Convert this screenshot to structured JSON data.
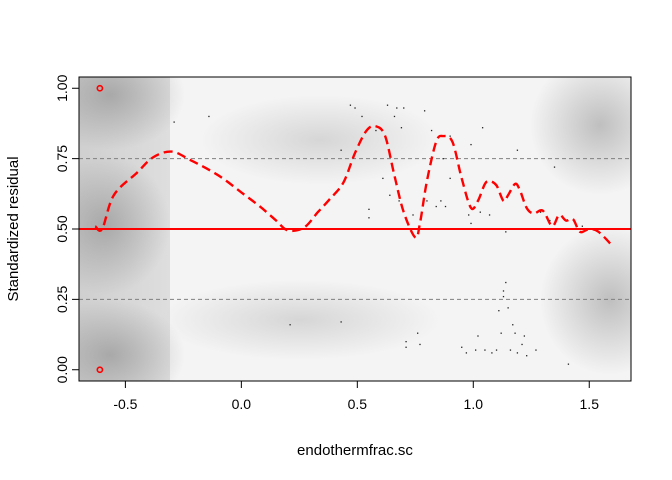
{
  "chart_data": {
    "type": "scatter",
    "title": "",
    "xlabel": "endothermfrac.sc",
    "ylabel": "Standardized residual",
    "xlim": [
      -0.7,
      1.68
    ],
    "ylim": [
      -0.04,
      1.04
    ],
    "x_ticks": [
      -0.5,
      0.0,
      0.5,
      1.0,
      1.5
    ],
    "x_tick_labels": [
      "-0.5",
      "0.0",
      "0.5",
      "1.0",
      "1.5"
    ],
    "y_ticks": [
      0.0,
      0.25,
      0.5,
      0.75,
      1.0
    ],
    "y_tick_labels": [
      "0.00",
      "0.25",
      "0.50",
      "0.75",
      "1.00"
    ],
    "reference_lines": [
      {
        "y": 0.25,
        "style": "dashed",
        "color": "#808080"
      },
      {
        "y": 0.5,
        "style": "solid",
        "color": "#ff0000"
      },
      {
        "y": 0.75,
        "style": "dashed",
        "color": "#808080"
      }
    ],
    "background": "grayscale density shading",
    "outlier_points": [
      {
        "x": -0.61,
        "y": 1.0
      },
      {
        "x": -0.61,
        "y": 0.0
      }
    ],
    "residual_points": [
      {
        "x": -0.29,
        "y": 0.88
      },
      {
        "x": -0.14,
        "y": 0.9
      },
      {
        "x": 0.21,
        "y": 0.16
      },
      {
        "x": 0.43,
        "y": 0.78
      },
      {
        "x": 0.43,
        "y": 0.17
      },
      {
        "x": 0.47,
        "y": 0.94
      },
      {
        "x": 0.49,
        "y": 0.93
      },
      {
        "x": 0.52,
        "y": 0.9
      },
      {
        "x": 0.55,
        "y": 0.57
      },
      {
        "x": 0.55,
        "y": 0.54
      },
      {
        "x": 0.58,
        "y": 0.85
      },
      {
        "x": 0.61,
        "y": 0.68
      },
      {
        "x": 0.63,
        "y": 0.94
      },
      {
        "x": 0.64,
        "y": 0.62
      },
      {
        "x": 0.66,
        "y": 0.9
      },
      {
        "x": 0.67,
        "y": 0.93
      },
      {
        "x": 0.68,
        "y": 0.6
      },
      {
        "x": 0.69,
        "y": 0.86
      },
      {
        "x": 0.7,
        "y": 0.93
      },
      {
        "x": 0.71,
        "y": 0.1
      },
      {
        "x": 0.71,
        "y": 0.08
      },
      {
        "x": 0.74,
        "y": 0.55
      },
      {
        "x": 0.76,
        "y": 0.13
      },
      {
        "x": 0.77,
        "y": 0.09
      },
      {
        "x": 0.79,
        "y": 0.92
      },
      {
        "x": 0.8,
        "y": 0.6
      },
      {
        "x": 0.82,
        "y": 0.85
      },
      {
        "x": 0.84,
        "y": 0.58
      },
      {
        "x": 0.86,
        "y": 0.6
      },
      {
        "x": 0.87,
        "y": 0.75
      },
      {
        "x": 0.88,
        "y": 0.58
      },
      {
        "x": 0.9,
        "y": 0.83
      },
      {
        "x": 0.9,
        "y": 0.68
      },
      {
        "x": 0.95,
        "y": 0.08
      },
      {
        "x": 0.97,
        "y": 0.06
      },
      {
        "x": 0.98,
        "y": 0.55
      },
      {
        "x": 0.99,
        "y": 0.52
      },
      {
        "x": 0.99,
        "y": 0.8
      },
      {
        "x": 1.01,
        "y": 0.07
      },
      {
        "x": 1.02,
        "y": 0.12
      },
      {
        "x": 1.03,
        "y": 0.56
      },
      {
        "x": 1.04,
        "y": 0.86
      },
      {
        "x": 1.05,
        "y": 0.07
      },
      {
        "x": 1.07,
        "y": 0.55
      },
      {
        "x": 1.08,
        "y": 0.06
      },
      {
        "x": 1.1,
        "y": 0.07
      },
      {
        "x": 1.11,
        "y": 0.21
      },
      {
        "x": 1.12,
        "y": 0.13
      },
      {
        "x": 1.13,
        "y": 0.28
      },
      {
        "x": 1.13,
        "y": 0.26
      },
      {
        "x": 1.14,
        "y": 0.31
      },
      {
        "x": 1.14,
        "y": 0.49
      },
      {
        "x": 1.15,
        "y": 0.22
      },
      {
        "x": 1.16,
        "y": 0.07
      },
      {
        "x": 1.17,
        "y": 0.16
      },
      {
        "x": 1.18,
        "y": 0.13
      },
      {
        "x": 1.19,
        "y": 0.06
      },
      {
        "x": 1.19,
        "y": 0.78
      },
      {
        "x": 1.21,
        "y": 0.09
      },
      {
        "x": 1.22,
        "y": 0.12
      },
      {
        "x": 1.23,
        "y": 0.05
      },
      {
        "x": 1.27,
        "y": 0.07
      },
      {
        "x": 1.29,
        "y": 0.56
      },
      {
        "x": 1.33,
        "y": 0.53
      },
      {
        "x": 1.35,
        "y": 0.72
      },
      {
        "x": 1.41,
        "y": 0.02
      },
      {
        "x": 1.47,
        "y": 0.51
      }
    ],
    "smooth_line": {
      "style": "dashed",
      "color": "#ff0000",
      "points": [
        [
          -0.63,
          0.51
        ],
        [
          -0.6,
          0.5
        ],
        [
          -0.55,
          0.62
        ],
        [
          -0.45,
          0.7
        ],
        [
          -0.38,
          0.755
        ],
        [
          -0.3,
          0.775
        ],
        [
          -0.22,
          0.745
        ],
        [
          -0.15,
          0.715
        ],
        [
          -0.08,
          0.68
        ],
        [
          0.0,
          0.63
        ],
        [
          0.08,
          0.58
        ],
        [
          0.15,
          0.53
        ],
        [
          0.2,
          0.495
        ],
        [
          0.27,
          0.505
        ],
        [
          0.33,
          0.56
        ],
        [
          0.38,
          0.605
        ],
        [
          0.44,
          0.665
        ],
        [
          0.49,
          0.77
        ],
        [
          0.54,
          0.85
        ],
        [
          0.58,
          0.865
        ],
        [
          0.62,
          0.83
        ],
        [
          0.66,
          0.69
        ],
        [
          0.7,
          0.56
        ],
        [
          0.75,
          0.47
        ],
        [
          0.77,
          0.52
        ],
        [
          0.8,
          0.67
        ],
        [
          0.84,
          0.81
        ],
        [
          0.87,
          0.83
        ],
        [
          0.91,
          0.81
        ],
        [
          0.95,
          0.68
        ],
        [
          0.99,
          0.575
        ],
        [
          1.02,
          0.6
        ],
        [
          1.05,
          0.66
        ],
        [
          1.07,
          0.67
        ],
        [
          1.1,
          0.655
        ],
        [
          1.13,
          0.6
        ],
        [
          1.15,
          0.62
        ],
        [
          1.18,
          0.66
        ],
        [
          1.2,
          0.64
        ],
        [
          1.23,
          0.575
        ],
        [
          1.26,
          0.555
        ],
        [
          1.3,
          0.565
        ],
        [
          1.34,
          0.51
        ],
        [
          1.37,
          0.55
        ],
        [
          1.4,
          0.53
        ],
        [
          1.43,
          0.535
        ],
        [
          1.46,
          0.49
        ],
        [
          1.5,
          0.5
        ],
        [
          1.54,
          0.49
        ],
        [
          1.6,
          0.44
        ]
      ]
    }
  },
  "colors": {
    "accent": "#ff0000",
    "reference_dashed": "#808080",
    "axis": "#000000"
  }
}
